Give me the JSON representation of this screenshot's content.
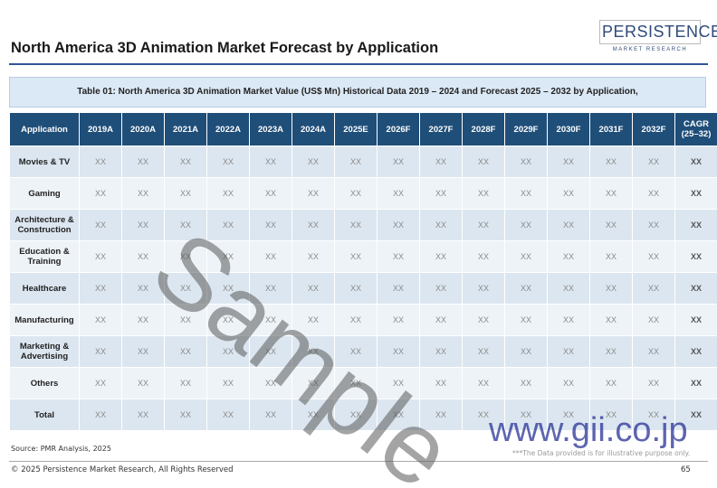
{
  "header": {
    "title": "North America 3D Animation Market Forecast by Application",
    "logo": {
      "name": "PERSISTENCE",
      "tagline": "MARKET RESEARCH"
    }
  },
  "table": {
    "caption": "Table 01: North America 3D Animation Market Value (US$ Mn) Historical Data 2019 – 2024  and Forecast 2025 – 2032 by Application,",
    "columns": [
      "Application",
      "2019A",
      "2020A",
      "2021A",
      "2022A",
      "2023A",
      "2024A",
      "2025E",
      "2026F",
      "2027F",
      "2028F",
      "2029F",
      "2030F",
      "2031F",
      "2032F",
      "CAGR (25–32)"
    ],
    "rows": [
      [
        "Movies & TV",
        "XX",
        "XX",
        "XX",
        "XX",
        "XX",
        "XX",
        "XX",
        "XX",
        "XX",
        "XX",
        "XX",
        "XX",
        "XX",
        "XX",
        "XX"
      ],
      [
        "Gaming",
        "XX",
        "XX",
        "XX",
        "XX",
        "XX",
        "XX",
        "XX",
        "XX",
        "XX",
        "XX",
        "XX",
        "XX",
        "XX",
        "XX",
        "XX"
      ],
      [
        "Architecture & Construction",
        "XX",
        "XX",
        "XX",
        "XX",
        "XX",
        "XX",
        "XX",
        "XX",
        "XX",
        "XX",
        "XX",
        "XX",
        "XX",
        "XX",
        "XX"
      ],
      [
        "Education & Training",
        "XX",
        "XX",
        "XX",
        "XX",
        "XX",
        "XX",
        "XX",
        "XX",
        "XX",
        "XX",
        "XX",
        "XX",
        "XX",
        "XX",
        "XX"
      ],
      [
        "Healthcare",
        "XX",
        "XX",
        "XX",
        "XX",
        "XX",
        "XX",
        "XX",
        "XX",
        "XX",
        "XX",
        "XX",
        "XX",
        "XX",
        "XX",
        "XX"
      ],
      [
        "Manufacturing",
        "XX",
        "XX",
        "XX",
        "XX",
        "XX",
        "XX",
        "XX",
        "XX",
        "XX",
        "XX",
        "XX",
        "XX",
        "XX",
        "XX",
        "XX"
      ],
      [
        "Marketing & Advertising",
        "XX",
        "XX",
        "XX",
        "XX",
        "XX",
        "XX",
        "XX",
        "XX",
        "XX",
        "XX",
        "XX",
        "XX",
        "XX",
        "XX",
        "XX"
      ],
      [
        "Others",
        "XX",
        "XX",
        "XX",
        "XX",
        "XX",
        "XX",
        "XX",
        "XX",
        "XX",
        "XX",
        "XX",
        "XX",
        "XX",
        "XX",
        "XX"
      ],
      [
        "Total",
        "XX",
        "XX",
        "XX",
        "XX",
        "XX",
        "XX",
        "XX",
        "XX",
        "XX",
        "XX",
        "XX",
        "XX",
        "XX",
        "XX",
        "XX"
      ]
    ]
  },
  "source": "Source: PMR Analysis, 2025",
  "note": "***The Data provided is for illustrative purpose only.",
  "footer": {
    "copyright": "© 2025 Persistence Market Research, All Rights Reserved",
    "page": 65
  },
  "watermarks": [
    "Sample",
    "www.gii.co.jp"
  ]
}
